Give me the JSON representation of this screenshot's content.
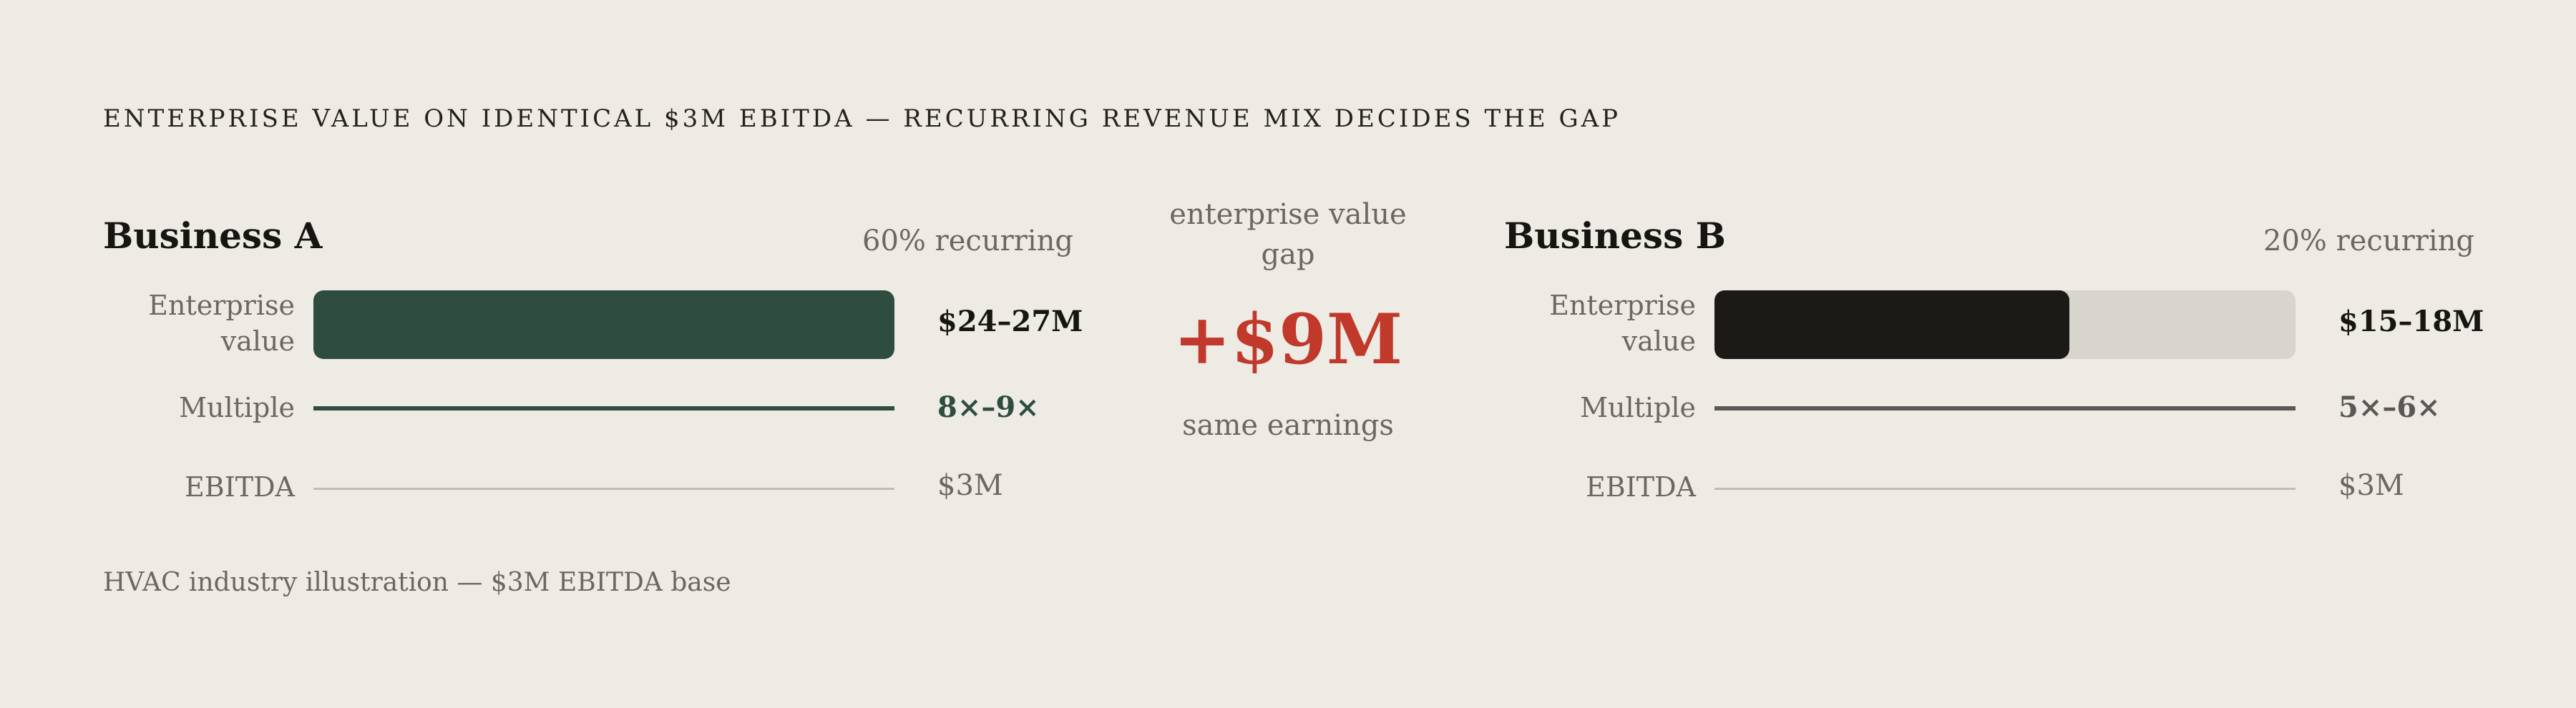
{
  "title": "ENTERPRISE VALUE ON IDENTICAL $3M EBITDA — RECURRING REVENUE MIX DECIDES THE GAP",
  "footnote": "HVAC industry illustration — $3M EBITDA base",
  "center": {
    "label": "enterprise value gap",
    "value": "+$9M",
    "note": "same earnings"
  },
  "colors": {
    "background": "#eeeae4",
    "business_a": "#2e4d40",
    "business_b": "#1b1a17",
    "business_b_multiple_line": "#5a5856",
    "track": "#d8d4ce",
    "gap": "#c0392b"
  },
  "chart_data": {
    "type": "bar",
    "title": "ENTERPRISE VALUE ON IDENTICAL $3M EBITDA — RECURRING REVENUE MIX DECIDES THE GAP",
    "ev_scale_max": 27,
    "row_labels": {
      "ev": "Enterprise value",
      "multiple": "Multiple",
      "ebitda": "EBITDA"
    },
    "panels": [
      {
        "key": "a",
        "name": "Business A",
        "recurring_label": "60% recurring",
        "ev_label": "$24–27M",
        "ev_value": 27,
        "multiple_label": "8×–9×",
        "ebitda_label": "$3M"
      },
      {
        "key": "b",
        "name": "Business B",
        "recurring_label": "20% recurring",
        "ev_label": "$15–18M",
        "ev_value": 16.5,
        "multiple_label": "5×–6×",
        "ebitda_label": "$3M"
      }
    ]
  }
}
